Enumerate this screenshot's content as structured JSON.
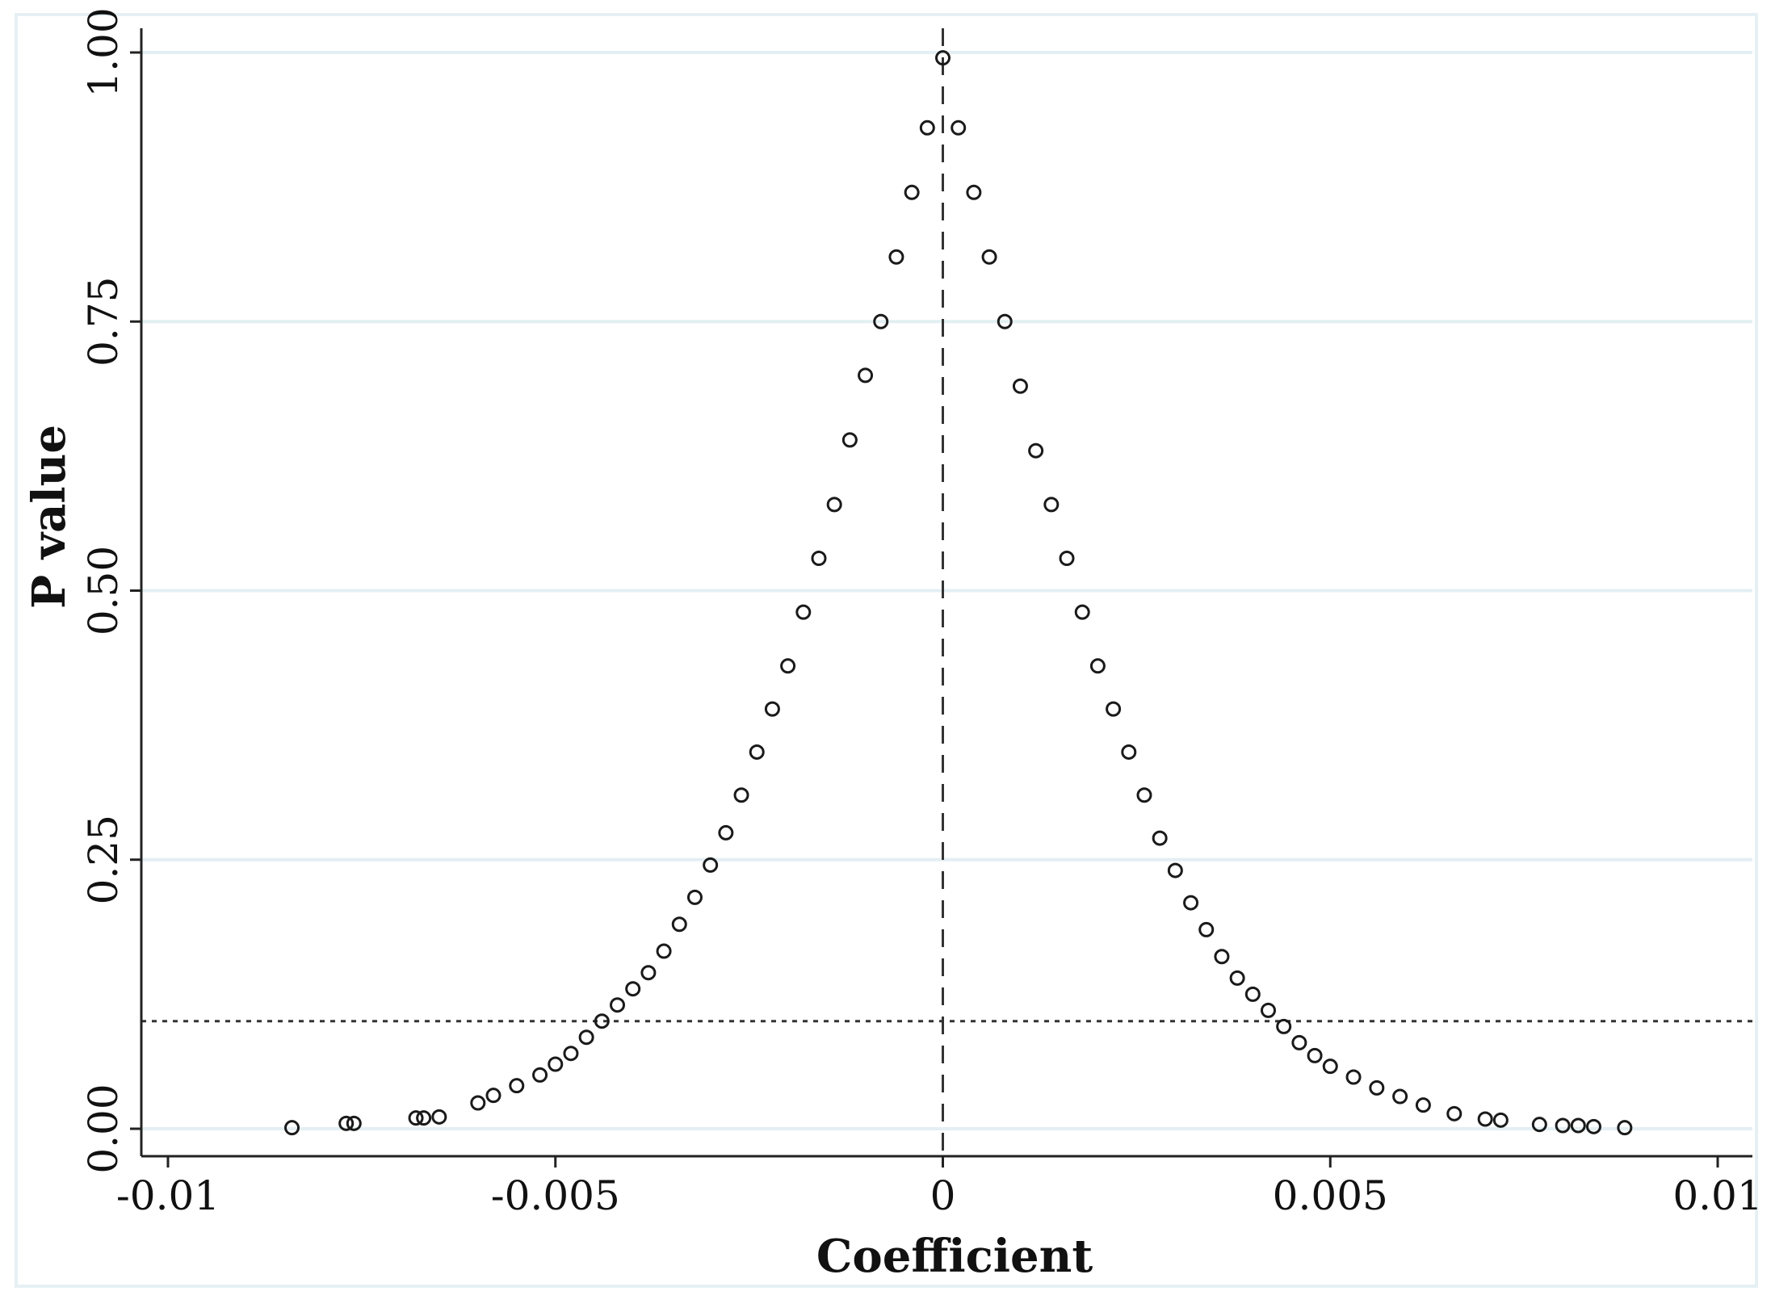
{
  "chart_data": {
    "type": "scatter",
    "title": "",
    "xlabel": "Coefficient",
    "ylabel": "P value",
    "xlim": [
      -0.01,
      0.01
    ],
    "ylim": [
      0,
      1
    ],
    "x_ticks": [
      -0.01,
      -0.005,
      0,
      0.005,
      0.01
    ],
    "x_tick_labels": [
      "-0.01",
      "-0.005",
      "0",
      "0.005",
      "0.01"
    ],
    "y_ticks": [
      0,
      0.25,
      0.5,
      0.75,
      1.0
    ],
    "y_tick_labels": [
      "0.00",
      "0.25",
      "0.50",
      "0.75",
      "1.00"
    ],
    "grid": "horizontal",
    "reference_lines": [
      {
        "axis": "x",
        "value": 0,
        "style": "dashed"
      },
      {
        "axis": "y",
        "value": 0.1,
        "style": "dotted"
      }
    ],
    "marker": "hollow-circle",
    "series": [
      {
        "points": [
          [
            -0.0084,
            0.001
          ],
          [
            -0.0077,
            0.005
          ],
          [
            -0.0076,
            0.005
          ],
          [
            -0.0068,
            0.01
          ],
          [
            -0.0067,
            0.01
          ],
          [
            -0.0065,
            0.011
          ],
          [
            -0.006,
            0.024
          ],
          [
            -0.0058,
            0.031
          ],
          [
            -0.0055,
            0.04
          ],
          [
            -0.0052,
            0.05
          ],
          [
            -0.005,
            0.06
          ],
          [
            -0.0048,
            0.07
          ],
          [
            -0.0046,
            0.085
          ],
          [
            -0.0044,
            0.1
          ],
          [
            -0.0042,
            0.115
          ],
          [
            -0.004,
            0.13
          ],
          [
            -0.0038,
            0.145
          ],
          [
            -0.0036,
            0.165
          ],
          [
            -0.0034,
            0.19
          ],
          [
            -0.0032,
            0.215
          ],
          [
            -0.003,
            0.245
          ],
          [
            -0.0028,
            0.275
          ],
          [
            -0.0026,
            0.31
          ],
          [
            -0.0024,
            0.35
          ],
          [
            -0.0022,
            0.39
          ],
          [
            -0.002,
            0.43
          ],
          [
            -0.0018,
            0.48
          ],
          [
            -0.0016,
            0.53
          ],
          [
            -0.0014,
            0.58
          ],
          [
            -0.0012,
            0.64
          ],
          [
            -0.001,
            0.7
          ],
          [
            -0.0008,
            0.75
          ],
          [
            -0.0006,
            0.81
          ],
          [
            -0.0004,
            0.87
          ],
          [
            -0.0002,
            0.93
          ],
          [
            0.0,
            0.995
          ],
          [
            0.0002,
            0.93
          ],
          [
            0.0004,
            0.87
          ],
          [
            0.0006,
            0.81
          ],
          [
            0.0008,
            0.75
          ],
          [
            0.001,
            0.69
          ],
          [
            0.0012,
            0.63
          ],
          [
            0.0014,
            0.58
          ],
          [
            0.0016,
            0.53
          ],
          [
            0.0018,
            0.48
          ],
          [
            0.002,
            0.43
          ],
          [
            0.0022,
            0.39
          ],
          [
            0.0024,
            0.35
          ],
          [
            0.0026,
            0.31
          ],
          [
            0.0028,
            0.27
          ],
          [
            0.003,
            0.24
          ],
          [
            0.0032,
            0.21
          ],
          [
            0.0034,
            0.185
          ],
          [
            0.0036,
            0.16
          ],
          [
            0.0038,
            0.14
          ],
          [
            0.004,
            0.125
          ],
          [
            0.0042,
            0.11
          ],
          [
            0.0044,
            0.095
          ],
          [
            0.0046,
            0.08
          ],
          [
            0.0048,
            0.068
          ],
          [
            0.005,
            0.058
          ],
          [
            0.0053,
            0.048
          ],
          [
            0.0056,
            0.038
          ],
          [
            0.0059,
            0.03
          ],
          [
            0.0062,
            0.022
          ],
          [
            0.0066,
            0.014
          ],
          [
            0.007,
            0.009
          ],
          [
            0.0072,
            0.008
          ],
          [
            0.0077,
            0.004
          ],
          [
            0.008,
            0.003
          ],
          [
            0.0082,
            0.003
          ],
          [
            0.0084,
            0.002
          ],
          [
            0.0088,
            0.001
          ]
        ]
      }
    ]
  }
}
